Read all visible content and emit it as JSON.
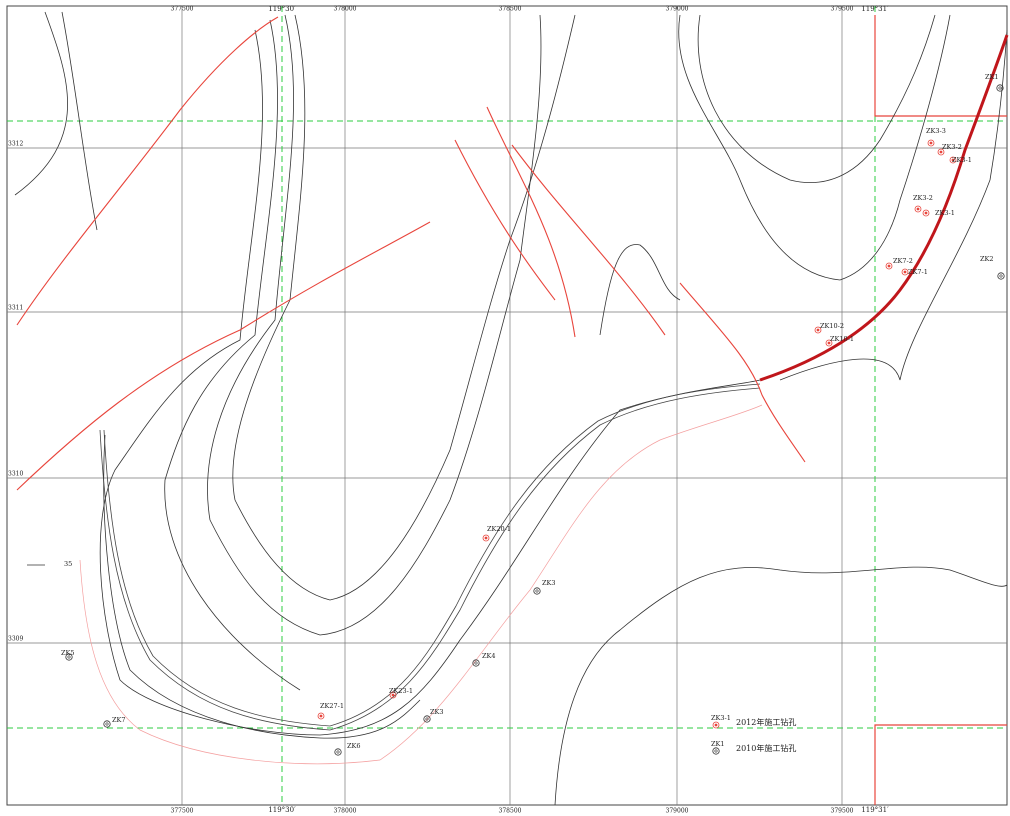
{
  "map": {
    "top_labels": [
      "377500",
      "378000",
      "378500",
      "379000",
      "379500"
    ],
    "bottom_labels": [
      "377500",
      "378000",
      "378500",
      "379000",
      "379500"
    ],
    "left_labels": [
      "3312",
      "3311",
      "3310",
      "3309"
    ],
    "degree_top": [
      "119°30′",
      "119°31′"
    ],
    "degree_bottom": [
      "119°30′",
      "119°31′"
    ],
    "annotation": "35",
    "boreholes": [
      {
        "label": "ZK1"
      },
      {
        "label": "ZK3-3"
      },
      {
        "label": "ZK3-2"
      },
      {
        "label": "ZK3-1"
      },
      {
        "label": "ZK3-2"
      },
      {
        "label": "ZK3-1"
      },
      {
        "label": "ZK7-2"
      },
      {
        "label": "ZK7-1"
      },
      {
        "label": "ZK10-2"
      },
      {
        "label": "ZK10-1"
      },
      {
        "label": "ZK2"
      },
      {
        "label": "ZK20-1"
      },
      {
        "label": "ZK3"
      },
      {
        "label": "ZK5"
      },
      {
        "label": "ZK4"
      },
      {
        "label": "ZK23-1"
      },
      {
        "label": "ZK27-1"
      },
      {
        "label": "ZK3"
      },
      {
        "label": "ZK6"
      },
      {
        "label": "ZK7"
      }
    ],
    "legend": [
      {
        "code": "ZK3-1",
        "text": "2012年施工钻孔"
      },
      {
        "code": "ZK1",
        "text": "2010年施工钻孔"
      }
    ]
  }
}
